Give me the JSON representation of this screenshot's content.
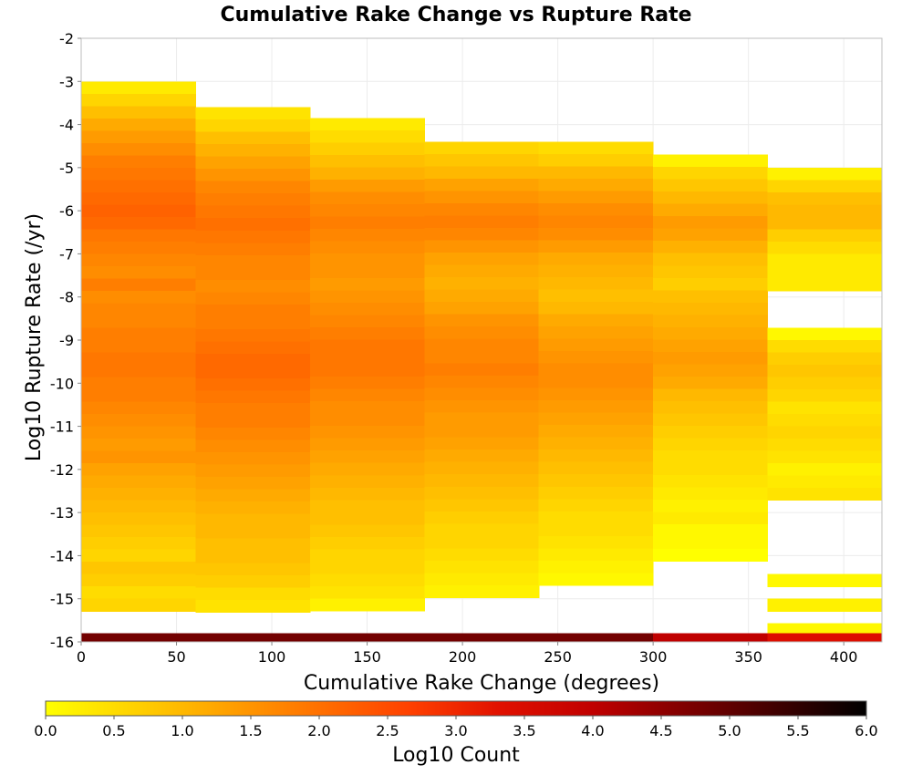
{
  "chart_data": {
    "type": "heatmap",
    "title": "Cumulative Rake Change vs Rupture Rate",
    "xlabel": "Cumulative Rake Change (degrees)",
    "ylabel": "Log10 Rupture Rate (/yr)",
    "xlim": [
      0,
      420
    ],
    "ylim": [
      -16,
      -2
    ],
    "xticks": [
      "0",
      "50",
      "100",
      "150",
      "200",
      "250",
      "300",
      "350",
      "400"
    ],
    "yticks": [
      "-2",
      "-3",
      "-4",
      "-5",
      "-6",
      "-7",
      "-8",
      "-9",
      "-10",
      "-11",
      "-12",
      "-13",
      "-14",
      "-15",
      "-16"
    ],
    "colorbar": {
      "label": "Log10 Count",
      "range": [
        0,
        6
      ],
      "ticks": [
        "0.0",
        "0.5",
        "1.0",
        "1.5",
        "2.0",
        "2.5",
        "3.0",
        "3.5",
        "4.0",
        "4.5",
        "5.0",
        "5.5",
        "6.0"
      ],
      "colors": [
        "#ffff00",
        "#ffd000",
        "#ffa000",
        "#ff7000",
        "#ff4000",
        "#e01000",
        "#c00000",
        "#800000",
        "#400000",
        "#000000"
      ]
    },
    "x_bin_width": 60,
    "y_bin_height": 0.2857,
    "columns": [
      {
        "x_start": 0,
        "top": -3.0,
        "values": [
          0.3,
          0.6,
          0.9,
          1.2,
          1.4,
          1.6,
          1.8,
          1.9,
          2.0,
          2.1,
          2.2,
          2.1,
          1.9,
          1.8,
          1.7,
          1.6,
          1.8,
          1.6,
          1.7,
          1.7,
          1.8,
          1.8,
          1.9,
          1.9,
          1.8,
          1.8,
          1.7,
          1.6,
          1.5,
          1.4,
          1.5,
          1.3,
          1.2,
          1.1,
          1.0,
          0.9,
          0.8,
          0.7,
          0.6,
          0.8,
          0.7,
          0.5,
          0.6
        ]
      },
      {
        "x_start": 60,
        "top": -3.6,
        "values": [
          0.4,
          0.6,
          0.9,
          1.1,
          1.3,
          1.5,
          1.7,
          1.8,
          1.9,
          2.0,
          1.9,
          1.8,
          1.7,
          1.7,
          1.6,
          1.7,
          1.8,
          1.8,
          1.9,
          2.0,
          2.1,
          2.1,
          2.0,
          1.9,
          1.8,
          1.8,
          1.7,
          1.6,
          1.5,
          1.4,
          1.3,
          1.2,
          1.1,
          1.0,
          1.0,
          0.9,
          0.9,
          0.8,
          0.7,
          0.5,
          0.4
        ]
      },
      {
        "x_start": 120,
        "top": -3.85,
        "values": [
          0.3,
          0.5,
          0.7,
          0.9,
          1.1,
          1.4,
          1.6,
          1.7,
          1.8,
          1.7,
          1.6,
          1.5,
          1.5,
          1.4,
          1.5,
          1.6,
          1.7,
          1.8,
          1.9,
          1.9,
          1.9,
          1.8,
          1.7,
          1.6,
          1.6,
          1.5,
          1.4,
          1.3,
          1.2,
          1.1,
          1.0,
          0.9,
          0.9,
          0.8,
          0.7,
          0.6,
          0.6,
          0.5,
          0.4,
          0.2
        ]
      },
      {
        "x_start": 180,
        "top": -4.4,
        "values": [
          0.6,
          0.8,
          1.0,
          1.3,
          1.5,
          1.7,
          1.8,
          1.7,
          1.5,
          1.3,
          1.2,
          1.1,
          1.2,
          1.3,
          1.5,
          1.6,
          1.7,
          1.7,
          1.8,
          1.7,
          1.6,
          1.5,
          1.4,
          1.4,
          1.3,
          1.2,
          1.1,
          1.0,
          0.9,
          0.8,
          0.7,
          0.6,
          0.6,
          0.5,
          0.4,
          0.3,
          0.2
        ]
      },
      {
        "x_start": 240,
        "top": -4.4,
        "values": [
          0.5,
          0.7,
          1.0,
          1.2,
          1.4,
          1.6,
          1.7,
          1.6,
          1.4,
          1.2,
          1.1,
          1.0,
          0.9,
          1.0,
          1.2,
          1.3,
          1.4,
          1.5,
          1.6,
          1.6,
          1.5,
          1.4,
          1.3,
          1.2,
          1.1,
          1.0,
          0.9,
          0.8,
          0.7,
          0.6,
          0.5,
          0.5,
          0.4,
          0.3,
          0.2,
          0.1
        ]
      },
      {
        "x_start": 300,
        "top": -4.7,
        "values": [
          0.2,
          0.6,
          0.8,
          1.0,
          1.2,
          1.4,
          1.3,
          1.1,
          0.9,
          0.8,
          0.7,
          0.9,
          1.0,
          1.1,
          1.2,
          1.3,
          1.4,
          1.3,
          1.2,
          1.0,
          0.9,
          0.8,
          0.7,
          0.6,
          0.5,
          0.5,
          0.4,
          0.3,
          0.2,
          0.3,
          0.1,
          0.1,
          0.0
        ]
      },
      {
        "x_start": 360,
        "top": -5.0,
        "values": [
          0.2,
          0.6,
          0.9,
          1.0,
          1.0,
          0.7,
          0.5,
          0.3,
          0.3,
          0.3,
          null,
          null,
          null,
          0.1,
          0.5,
          0.7,
          0.8,
          0.7,
          0.6,
          0.4,
          0.5,
          0.6,
          0.5,
          0.4,
          0.2,
          0.3,
          0.4,
          null,
          null,
          null,
          null,
          null,
          null,
          0.1,
          null,
          0.2,
          null,
          0.1
        ]
      }
    ],
    "bottom_row": {
      "y": -16,
      "values": [
        4.8,
        4.8,
        4.8,
        4.8,
        4.8,
        4.0,
        3.4
      ]
    }
  }
}
